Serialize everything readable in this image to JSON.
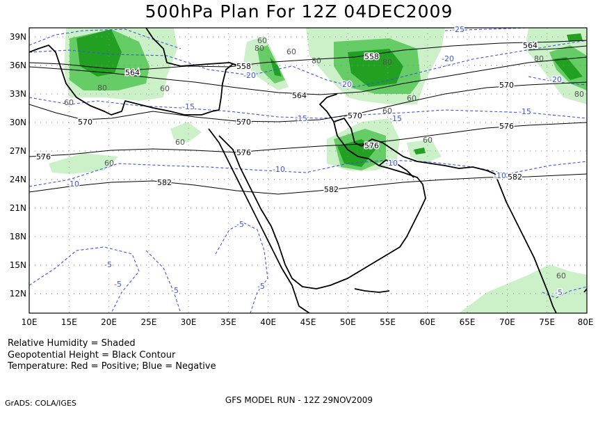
{
  "title": "500hPa Plan For 12Z 04DEC2009",
  "legend": [
    "Relative Humidity = Shaded",
    "Geopotential Height = Black Contour",
    "Temperature: Red = Positive; Blue = Negative"
  ],
  "footer_left": "GrADS: COLA/IGES",
  "footer_center": "GFS MODEL RUN - 12Z 29NOV2009",
  "map": {
    "lon_range": [
      10,
      80
    ],
    "lat_range": [
      9.5,
      40
    ],
    "lon_ticks": [
      "10E",
      "15E",
      "20E",
      "25E",
      "30E",
      "35E",
      "40E",
      "45E",
      "50E",
      "55E",
      "60E",
      "65E",
      "70E",
      "75E",
      "80E"
    ],
    "lat_ticks": [
      "39N",
      "36N",
      "33N",
      "30N",
      "27N",
      "24N",
      "21N",
      "18N",
      "15N",
      "12N"
    ],
    "height_labels": [
      "558",
      "564",
      "570",
      "576",
      "582"
    ],
    "temperature_labels": [
      "-25",
      "-20",
      "-15",
      "-10",
      "-5"
    ],
    "humidity_labels": [
      "60",
      "80"
    ],
    "colors": {
      "rh60": "#ccf0c8",
      "rh80": "#66cc66",
      "rh90": "#22a022",
      "height_contour": "#000000",
      "temp_contour": "#3c55e0",
      "grid": "#888888"
    }
  }
}
